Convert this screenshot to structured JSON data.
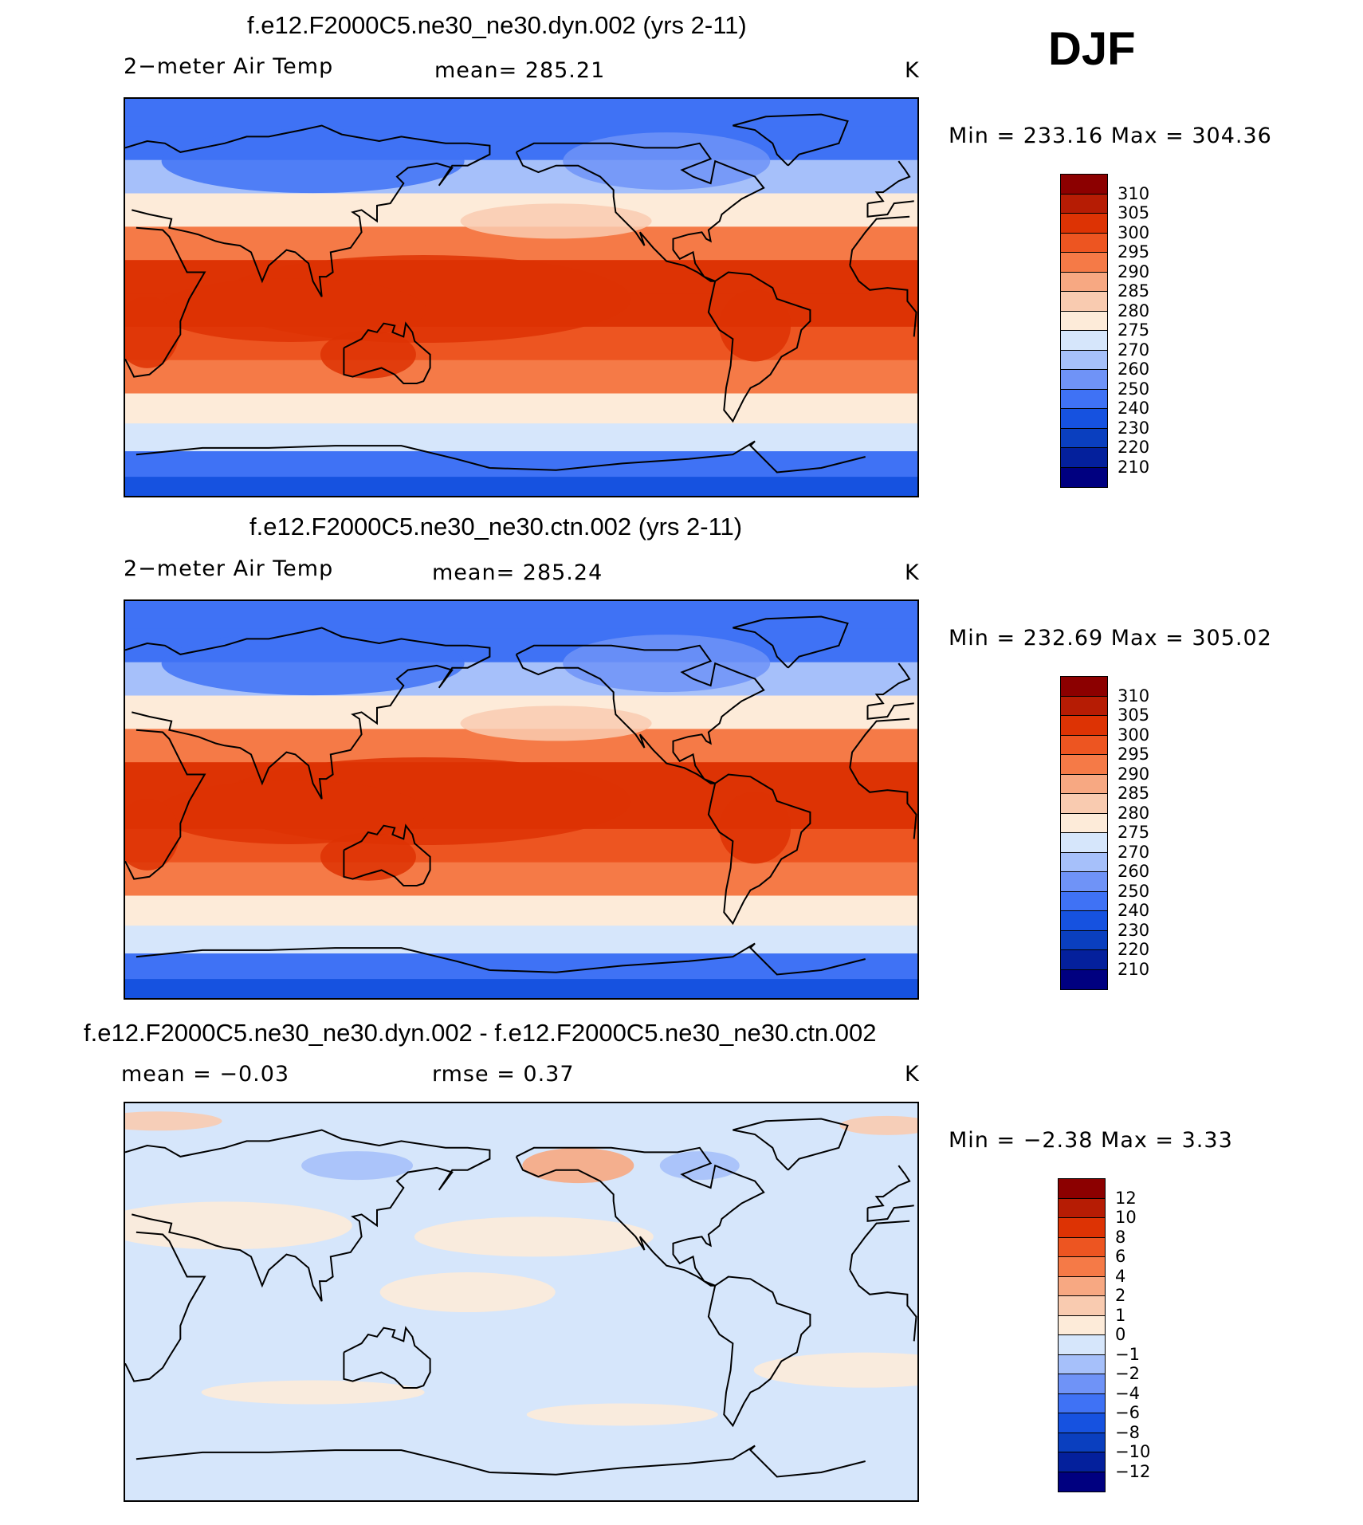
{
  "season": "DJF",
  "colors": {
    "land_outline": "#000000",
    "abs_scale": [
      "#000080",
      "#04209c",
      "#0a3fbf",
      "#1652e0",
      "#3f72f5",
      "#6f93f7",
      "#a6c0fa",
      "#d6e6fb",
      "#fdebd9",
      "#f9cbb0",
      "#f7a882",
      "#f57a47",
      "#ed5521",
      "#dd3304",
      "#b61c04",
      "#8c0000"
    ],
    "diff_scale": [
      "#000080",
      "#04209c",
      "#0a3fbf",
      "#1652e0",
      "#3f72f5",
      "#6f93f7",
      "#a6c0fa",
      "#d6e6fb",
      "#fdebd9",
      "#f9cbb0",
      "#f7a882",
      "#f57a47",
      "#ed5521",
      "#dd3304",
      "#b61c04",
      "#8c0000"
    ]
  },
  "panels": [
    {
      "title": "f.e12.F2000C5.ne30_ne30.dyn.002 (yrs 2-11)",
      "left_label": "2−meter Air Temp",
      "center_label": "mean=  285.21",
      "right_label": "K",
      "minmax": "Min  =  233.16  Max  =  304.36",
      "colorbar_labels": [
        "310",
        "305",
        "300",
        "295",
        "290",
        "285",
        "280",
        "275",
        "270",
        "260",
        "250",
        "240",
        "230",
        "220",
        "210"
      ],
      "kind": "abs"
    },
    {
      "title": "f.e12.F2000C5.ne30_ne30.ctn.002 (yrs 2-11)",
      "left_label": "2−meter Air Temp",
      "center_label": "mean=  285.24",
      "right_label": "K",
      "minmax": "Min  =  232.69  Max  =  305.02",
      "colorbar_labels": [
        "310",
        "305",
        "300",
        "295",
        "290",
        "285",
        "280",
        "275",
        "270",
        "260",
        "250",
        "240",
        "230",
        "220",
        "210"
      ],
      "kind": "abs"
    },
    {
      "title": "f.e12.F2000C5.ne30_ne30.dyn.002 - f.e12.F2000C5.ne30_ne30.ctn.002",
      "left_label": "mean  =    −0.03",
      "center_label": "rmse  =      0.37",
      "right_label": "K",
      "minmax": "Min  =    −2.38  Max  =      3.33",
      "colorbar_labels": [
        "12",
        "10",
        "8",
        "6",
        "4",
        "2",
        "1",
        "0",
        "−1",
        "−2",
        "−4",
        "−6",
        "−8",
        "−10",
        "−12"
      ],
      "kind": "diff"
    }
  ],
  "chart_data": [
    {
      "type": "heatmap",
      "title": "f.e12.F2000C5.ne30_ne30.dyn.002 (yrs 2-11)",
      "variable": "2-meter Air Temp",
      "units": "K",
      "season": "DJF",
      "mean": 285.21,
      "min": 233.16,
      "max": 304.36,
      "levels": [
        210,
        220,
        230,
        240,
        250,
        260,
        270,
        275,
        280,
        285,
        290,
        295,
        300,
        305,
        310
      ],
      "xlim": [
        0,
        360
      ],
      "ylim": [
        -90,
        90
      ],
      "lat_band_values": [
        {
          "lat": 85,
          "value": 240
        },
        {
          "lat": 70,
          "value": 248
        },
        {
          "lat": 55,
          "value": 262
        },
        {
          "lat": 40,
          "value": 278
        },
        {
          "lat": 25,
          "value": 292
        },
        {
          "lat": 10,
          "value": 300
        },
        {
          "lat": -5,
          "value": 302
        },
        {
          "lat": -20,
          "value": 298
        },
        {
          "lat": -35,
          "value": 290
        },
        {
          "lat": -50,
          "value": 278
        },
        {
          "lat": -62,
          "value": 270
        },
        {
          "lat": -75,
          "value": 245
        },
        {
          "lat": -85,
          "value": 235
        }
      ]
    },
    {
      "type": "heatmap",
      "title": "f.e12.F2000C5.ne30_ne30.ctn.002 (yrs 2-11)",
      "variable": "2-meter Air Temp",
      "units": "K",
      "season": "DJF",
      "mean": 285.24,
      "min": 232.69,
      "max": 305.02,
      "levels": [
        210,
        220,
        230,
        240,
        250,
        260,
        270,
        275,
        280,
        285,
        290,
        295,
        300,
        305,
        310
      ],
      "xlim": [
        0,
        360
      ],
      "ylim": [
        -90,
        90
      ],
      "lat_band_values": [
        {
          "lat": 85,
          "value": 240
        },
        {
          "lat": 70,
          "value": 248
        },
        {
          "lat": 55,
          "value": 262
        },
        {
          "lat": 40,
          "value": 278
        },
        {
          "lat": 25,
          "value": 292
        },
        {
          "lat": 10,
          "value": 300
        },
        {
          "lat": -5,
          "value": 302
        },
        {
          "lat": -20,
          "value": 298
        },
        {
          "lat": -35,
          "value": 290
        },
        {
          "lat": -50,
          "value": 278
        },
        {
          "lat": -62,
          "value": 270
        },
        {
          "lat": -75,
          "value": 245
        },
        {
          "lat": -85,
          "value": 235
        }
      ]
    },
    {
      "type": "heatmap",
      "title": "f.e12.F2000C5.ne30_ne30.dyn.002 - f.e12.F2000C5.ne30_ne30.ctn.002",
      "variable": "2-meter Air Temp difference",
      "units": "K",
      "season": "DJF",
      "mean": -0.03,
      "rmse": 0.37,
      "min": -2.38,
      "max": 3.33,
      "levels": [
        -12,
        -10,
        -8,
        -6,
        -4,
        -2,
        -1,
        0,
        1,
        2,
        4,
        6,
        8,
        10,
        12
      ],
      "xlim": [
        0,
        360
      ],
      "ylim": [
        -90,
        90
      ]
    }
  ]
}
